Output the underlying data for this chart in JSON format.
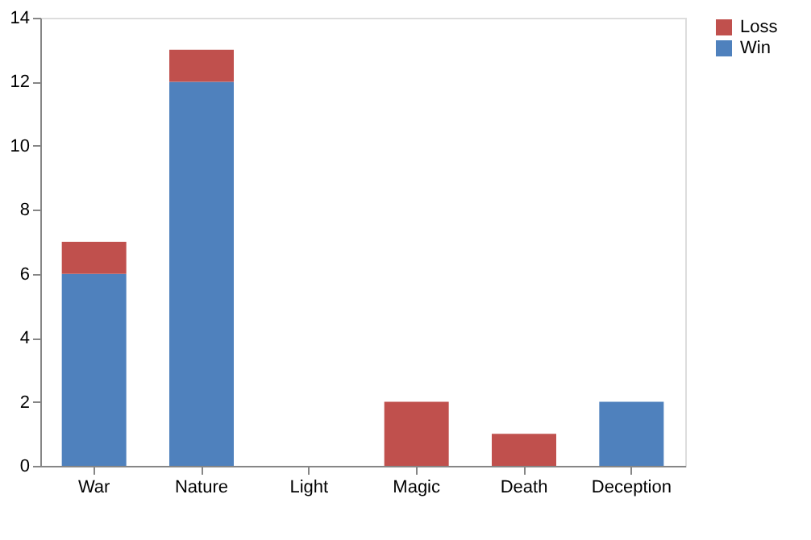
{
  "chart_data": {
    "type": "bar",
    "stacked": true,
    "categories": [
      "War",
      "Nature",
      "Light",
      "Magic",
      "Death",
      "Deception"
    ],
    "series": [
      {
        "name": "Win",
        "color": "#4f81bd",
        "values": [
          6,
          12,
          0,
          0,
          0,
          2
        ]
      },
      {
        "name": "Loss",
        "color": "#c0504d",
        "values": [
          1,
          1,
          0,
          2,
          1,
          0
        ]
      }
    ],
    "ylim": [
      0,
      14
    ],
    "yticks": [
      0,
      2,
      4,
      6,
      8,
      10,
      12,
      14
    ],
    "grid": false,
    "legend": "right"
  }
}
